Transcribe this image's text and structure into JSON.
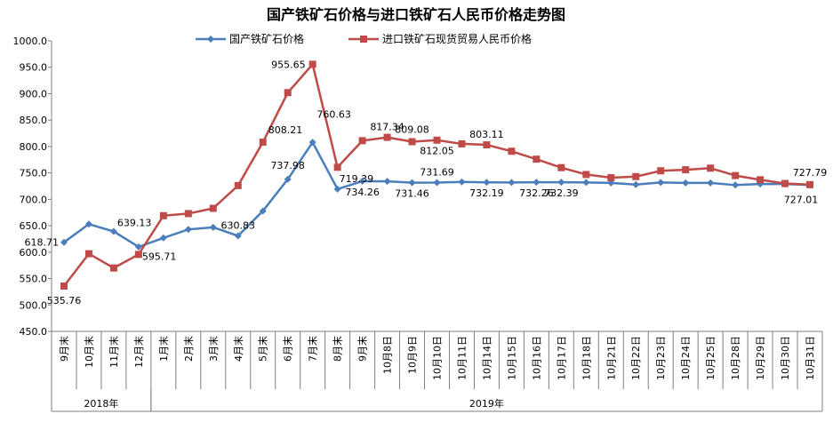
{
  "chart_data": {
    "type": "line",
    "title": "国产铁矿石价格与进口铁矿石人民币价格走势图",
    "xlabel": "",
    "ylabel": "",
    "ylim": [
      450,
      1000
    ],
    "y_ticks": [
      "450.0",
      "500.0",
      "550.0",
      "600.0",
      "650.0",
      "700.0",
      "750.0",
      "800.0",
      "850.0",
      "900.0",
      "950.0",
      "1000.0"
    ],
    "categories": [
      "9月末",
      "10月末",
      "11月末",
      "12月末",
      "1月末",
      "2月末",
      "3月末",
      "4月末",
      "5月末",
      "6月末",
      "7月末",
      "8月末",
      "9月末",
      "10月8日",
      "10月9日",
      "10月10日",
      "10月11日",
      "10月14日",
      "10月15日",
      "10月16日",
      "10月17日",
      "10月18日",
      "10月21日",
      "10月22日",
      "10月23日",
      "10月24日",
      "10月25日",
      "10月28日",
      "10月29日",
      "10月30日",
      "10月31日"
    ],
    "year_groups": [
      {
        "label": "2018年",
        "start": 0,
        "end": 3
      },
      {
        "label": "2019年",
        "start": 4,
        "end": 30
      }
    ],
    "grid": false,
    "legend_position": "top",
    "series": [
      {
        "name": "国产铁矿石价格",
        "color": "#4a7ebb",
        "marker": "diamond",
        "values": [
          618.71,
          653,
          639.13,
          610,
          627,
          643,
          647,
          630.83,
          678,
          737.98,
          808,
          719.39,
          734.26,
          734,
          731.46,
          731.69,
          733,
          732.19,
          732,
          732.26,
          732.39,
          732,
          731,
          728,
          732,
          731,
          731,
          727,
          729,
          729,
          727.01
        ],
        "labels": [
          {
            "index": 0,
            "text": "618.71"
          },
          {
            "index": 2,
            "text": "639.13"
          },
          {
            "index": 7,
            "text": "630.83"
          },
          {
            "index": 9,
            "text": "737.98"
          },
          {
            "index": 11,
            "text": "719.39"
          },
          {
            "index": 12,
            "text": "734.26"
          },
          {
            "index": 14,
            "text": "731.46"
          },
          {
            "index": 15,
            "text": "731.69"
          },
          {
            "index": 17,
            "text": "732.19"
          },
          {
            "index": 19,
            "text": "732.26"
          },
          {
            "index": 20,
            "text": "732.39"
          },
          {
            "index": 30,
            "text": "727.01"
          }
        ]
      },
      {
        "name": "进口铁矿石现货贸易人民币价格",
        "color": "#be4b48",
        "marker": "square",
        "values": [
          535.76,
          597,
          570,
          595.71,
          669,
          673,
          683,
          726,
          808.21,
          902,
          955.65,
          760.63,
          811,
          817.34,
          809.08,
          812.05,
          805,
          803.11,
          791,
          776,
          760,
          747,
          741,
          743,
          754,
          756,
          759,
          745,
          737,
          730,
          727.79
        ],
        "labels": [
          {
            "index": 0,
            "text": "535.76"
          },
          {
            "index": 3,
            "text": "595.71"
          },
          {
            "index": 8,
            "text": "808.21"
          },
          {
            "index": 10,
            "text": "955.65"
          },
          {
            "index": 11,
            "text": "760.63"
          },
          {
            "index": 13,
            "text": "817.34"
          },
          {
            "index": 14,
            "text": "809.08"
          },
          {
            "index": 15,
            "text": "812.05"
          },
          {
            "index": 17,
            "text": "803.11"
          },
          {
            "index": 30,
            "text": "727.79"
          }
        ]
      }
    ]
  }
}
